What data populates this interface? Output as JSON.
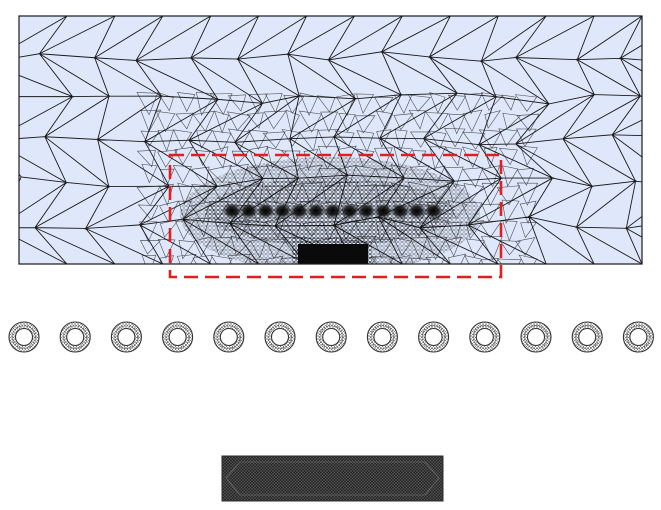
{
  "figure": {
    "panels": [
      "mesh-domain",
      "ring-row",
      "strip"
    ],
    "colors": {
      "domain_fill": "#dfe8fb",
      "mesh_line": "#1a1a1a",
      "zoom_box": "#e02020",
      "dense_mesh": "#0a0a0a",
      "ring_mesh": "#6a6a6a",
      "strip_fill": "#2b2b2b",
      "background": "#ffffff"
    },
    "ring_count": 13,
    "dense_blob_count": 13
  }
}
